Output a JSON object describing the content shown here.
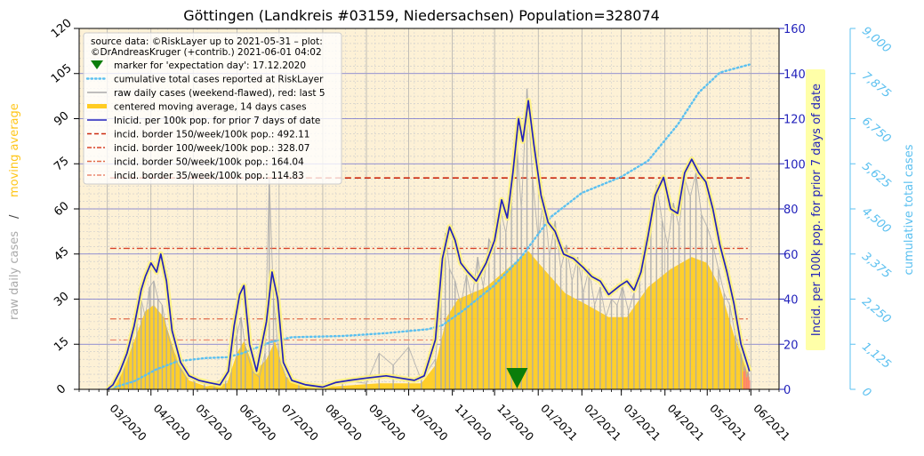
{
  "chart_data": {
    "type": "line",
    "title": "Göttingen (Landkreis #03159, Niedersachsen) Population=328074",
    "y_left_label_part1": "raw daily cases",
    "y_left_label_sep": "/",
    "y_left_label_part2": "moving average",
    "y_right_label": "Incid. per 100k pop. for prior 7 days of date",
    "y_right2_label": "cumulative total cases",
    "y_left_range": [
      0,
      120
    ],
    "y_right_range": [
      0,
      160
    ],
    "y_right2_range": [
      0,
      9000
    ],
    "y_left_ticks": [
      "0",
      "15",
      "30",
      "45",
      "60",
      "75",
      "90",
      "105",
      "120"
    ],
    "y_right_ticks": [
      "0",
      "20",
      "40",
      "60",
      "80",
      "100",
      "120",
      "140",
      "160"
    ],
    "y_right2_ticks": [
      "0",
      "1,125",
      "2,250",
      "3,375",
      "4,500",
      "5,625",
      "6,750",
      "7,875",
      "9,000"
    ],
    "x_ticks": [
      "03/2020",
      "04/2020",
      "05/2020",
      "06/2020",
      "07/2020",
      "08/2020",
      "09/2020",
      "10/2020",
      "11/2020",
      "12/2020",
      "01/2021",
      "02/2021",
      "03/2021",
      "04/2021",
      "05/2021",
      "06/2021"
    ],
    "x_range": [
      "2020-02-10",
      "2021-06-21"
    ],
    "grid": true,
    "legend_position": "top-left",
    "legend": {
      "source_line1": "source data: ©RiskLayer up to 2021-05-31 – plot:",
      "source_line2": "©DrAndreasKruger (+contrib.) 2021-06-01 04:02",
      "entries": [
        {
          "label": "marker for 'expectation day': 17.12.2020",
          "style": "marker",
          "color": "#0a7d0a"
        },
        {
          "label": "cumulative total cases reported at RiskLayer",
          "style": "dotted",
          "color": "#5bc0f0"
        },
        {
          "label": "raw daily cases (weekend-flawed), red: last 5",
          "style": "line",
          "color": "#aaaaaa"
        },
        {
          "label": "centered moving average, 14 days cases",
          "style": "thick",
          "color": "#ffcc22"
        },
        {
          "label": "Inicid. per 100k pop. for prior 7 days of date",
          "style": "line",
          "color": "#2222bb"
        },
        {
          "label": "incid. border 150/week/100k pop.: 492.11",
          "style": "dashed",
          "color": "#cc2a10"
        },
        {
          "label": "incid. border 100/week/100k pop.: 328.07",
          "style": "dashdot",
          "color": "#d9442a"
        },
        {
          "label": "incid. border   50/week/100k pop.: 164.04",
          "style": "dashdot",
          "color": "#e06a4a"
        },
        {
          "label": "incid. border   35/week/100k pop.: 114.83",
          "style": "dashdot",
          "color": "#ea8a72"
        }
      ]
    },
    "incidence_borders_cases": [
      492.11,
      328.07,
      164.04,
      114.83
    ],
    "expectation_day": "2020-12-17",
    "colors": {
      "background": "#fdf1d6",
      "raw": "#aaaaaa",
      "raw_last5": "#ff7777",
      "moving_average": "#ffcc22",
      "incidence": "#2222bb",
      "cumulative": "#5bc0f0",
      "marker": "#0a7d0a",
      "left_axis_raw": "#aaaaaa",
      "left_axis_avg": "#ffcc22",
      "right_axis": "#2222bb",
      "right2_axis": "#5bc0f0"
    },
    "series": [
      {
        "name": "Inicid. per 100k pop. for prior 7 days of date",
        "axis": "right",
        "points": [
          [
            "2020-03-01",
            0
          ],
          [
            "2020-03-05",
            2
          ],
          [
            "2020-03-10",
            8
          ],
          [
            "2020-03-15",
            16
          ],
          [
            "2020-03-20",
            28
          ],
          [
            "2020-03-25",
            44
          ],
          [
            "2020-03-28",
            50
          ],
          [
            "2020-04-01",
            56
          ],
          [
            "2020-04-05",
            52
          ],
          [
            "2020-04-08",
            60
          ],
          [
            "2020-04-12",
            48
          ],
          [
            "2020-04-16",
            26
          ],
          [
            "2020-04-22",
            12
          ],
          [
            "2020-04-28",
            6
          ],
          [
            "2020-05-05",
            4
          ],
          [
            "2020-05-12",
            3
          ],
          [
            "2020-05-20",
            2
          ],
          [
            "2020-05-26",
            8
          ],
          [
            "2020-05-30",
            28
          ],
          [
            "2020-06-03",
            42
          ],
          [
            "2020-06-06",
            46
          ],
          [
            "2020-06-10",
            20
          ],
          [
            "2020-06-15",
            8
          ],
          [
            "2020-06-22",
            30
          ],
          [
            "2020-06-26",
            52
          ],
          [
            "2020-06-30",
            40
          ],
          [
            "2020-07-04",
            12
          ],
          [
            "2020-07-10",
            4
          ],
          [
            "2020-07-20",
            2
          ],
          [
            "2020-08-01",
            1
          ],
          [
            "2020-08-10",
            3
          ],
          [
            "2020-08-20",
            4
          ],
          [
            "2020-09-01",
            5
          ],
          [
            "2020-09-15",
            6
          ],
          [
            "2020-09-25",
            5
          ],
          [
            "2020-10-05",
            4
          ],
          [
            "2020-10-12",
            6
          ],
          [
            "2020-10-20",
            22
          ],
          [
            "2020-10-25",
            58
          ],
          [
            "2020-10-30",
            72
          ],
          [
            "2020-11-03",
            66
          ],
          [
            "2020-11-07",
            56
          ],
          [
            "2020-11-12",
            52
          ],
          [
            "2020-11-18",
            48
          ],
          [
            "2020-11-25",
            56
          ],
          [
            "2020-12-01",
            66
          ],
          [
            "2020-12-06",
            84
          ],
          [
            "2020-12-10",
            76
          ],
          [
            "2020-12-14",
            96
          ],
          [
            "2020-12-18",
            120
          ],
          [
            "2020-12-21",
            110
          ],
          [
            "2020-12-25",
            128
          ],
          [
            "2020-12-29",
            108
          ],
          [
            "2021-01-03",
            86
          ],
          [
            "2021-01-08",
            74
          ],
          [
            "2021-01-13",
            70
          ],
          [
            "2021-01-19",
            60
          ],
          [
            "2021-01-26",
            58
          ],
          [
            "2021-02-02",
            54
          ],
          [
            "2021-02-08",
            50
          ],
          [
            "2021-02-14",
            48
          ],
          [
            "2021-02-20",
            42
          ],
          [
            "2021-02-28",
            46
          ],
          [
            "2021-03-05",
            48
          ],
          [
            "2021-03-10",
            44
          ],
          [
            "2021-03-15",
            52
          ],
          [
            "2021-03-20",
            68
          ],
          [
            "2021-03-25",
            86
          ],
          [
            "2021-03-31",
            94
          ],
          [
            "2021-04-05",
            80
          ],
          [
            "2021-04-10",
            78
          ],
          [
            "2021-04-15",
            96
          ],
          [
            "2021-04-20",
            102
          ],
          [
            "2021-04-25",
            96
          ],
          [
            "2021-04-30",
            92
          ],
          [
            "2021-05-05",
            80
          ],
          [
            "2021-05-10",
            64
          ],
          [
            "2021-05-15",
            52
          ],
          [
            "2021-05-20",
            38
          ],
          [
            "2021-05-25",
            20
          ],
          [
            "2021-05-30",
            10
          ],
          [
            "2021-05-31",
            8
          ]
        ]
      },
      {
        "name": "centered moving average, 14 days cases",
        "axis": "left",
        "points": [
          [
            "2020-03-01",
            0
          ],
          [
            "2020-03-10",
            4
          ],
          [
            "2020-03-20",
            16
          ],
          [
            "2020-03-28",
            26
          ],
          [
            "2020-04-03",
            28
          ],
          [
            "2020-04-10",
            24
          ],
          [
            "2020-04-18",
            12
          ],
          [
            "2020-04-28",
            3
          ],
          [
            "2020-05-10",
            1
          ],
          [
            "2020-05-25",
            2
          ],
          [
            "2020-06-01",
            12
          ],
          [
            "2020-06-06",
            16
          ],
          [
            "2020-06-14",
            6
          ],
          [
            "2020-06-22",
            10
          ],
          [
            "2020-06-28",
            16
          ],
          [
            "2020-07-06",
            4
          ],
          [
            "2020-07-20",
            1
          ],
          [
            "2020-08-10",
            1
          ],
          [
            "2020-09-10",
            2
          ],
          [
            "2020-10-10",
            2
          ],
          [
            "2020-10-20",
            8
          ],
          [
            "2020-10-28",
            24
          ],
          [
            "2020-11-05",
            30
          ],
          [
            "2020-11-15",
            32
          ],
          [
            "2020-11-25",
            34
          ],
          [
            "2020-12-05",
            38
          ],
          [
            "2020-12-15",
            42
          ],
          [
            "2020-12-25",
            46
          ],
          [
            "2021-01-05",
            40
          ],
          [
            "2021-01-20",
            32
          ],
          [
            "2021-02-05",
            28
          ],
          [
            "2021-02-20",
            24
          ],
          [
            "2021-03-05",
            24
          ],
          [
            "2021-03-20",
            34
          ],
          [
            "2021-04-05",
            40
          ],
          [
            "2021-04-20",
            44
          ],
          [
            "2021-05-01",
            42
          ],
          [
            "2021-05-10",
            34
          ],
          [
            "2021-05-20",
            18
          ],
          [
            "2021-05-31",
            4
          ]
        ]
      },
      {
        "name": "cumulative total cases reported at RiskLayer",
        "axis": "right2",
        "points": [
          [
            "2020-03-01",
            0
          ],
          [
            "2020-03-20",
            200
          ],
          [
            "2020-04-05",
            500
          ],
          [
            "2020-04-20",
            700
          ],
          [
            "2020-05-10",
            780
          ],
          [
            "2020-05-25",
            800
          ],
          [
            "2020-06-05",
            900
          ],
          [
            "2020-06-25",
            1180
          ],
          [
            "2020-07-10",
            1300
          ],
          [
            "2020-08-15",
            1330
          ],
          [
            "2020-09-15",
            1400
          ],
          [
            "2020-10-15",
            1500
          ],
          [
            "2020-10-25",
            1600
          ],
          [
            "2020-11-10",
            2000
          ],
          [
            "2020-12-01",
            2600
          ],
          [
            "2020-12-20",
            3300
          ],
          [
            "2021-01-10",
            4300
          ],
          [
            "2021-02-01",
            4900
          ],
          [
            "2021-03-01",
            5300
          ],
          [
            "2021-03-20",
            5700
          ],
          [
            "2021-04-10",
            6600
          ],
          [
            "2021-04-25",
            7400
          ],
          [
            "2021-05-10",
            7900
          ],
          [
            "2021-05-31",
            8100
          ]
        ]
      }
    ],
    "raw_daily_cases": [
      [
        "2020-03-02",
        1
      ],
      [
        "2020-03-06",
        3
      ],
      [
        "2020-03-10",
        6
      ],
      [
        "2020-03-13",
        9
      ],
      [
        "2020-03-16",
        14
      ],
      [
        "2020-03-19",
        20
      ],
      [
        "2020-03-22",
        26
      ],
      [
        "2020-03-25",
        30
      ],
      [
        "2020-03-28",
        24
      ],
      [
        "2020-03-31",
        34
      ],
      [
        "2020-04-03",
        36
      ],
      [
        "2020-04-06",
        30
      ],
      [
        "2020-04-09",
        28
      ],
      [
        "2020-04-12",
        20
      ],
      [
        "2020-04-15",
        15
      ],
      [
        "2020-04-18",
        10
      ],
      [
        "2020-04-22",
        7
      ],
      [
        "2020-04-26",
        4
      ],
      [
        "2020-05-02",
        3
      ],
      [
        "2020-05-09",
        2
      ],
      [
        "2020-05-16",
        2
      ],
      [
        "2020-05-24",
        4
      ],
      [
        "2020-05-28",
        12
      ],
      [
        "2020-06-01",
        18
      ],
      [
        "2020-06-04",
        24
      ],
      [
        "2020-06-07",
        14
      ],
      [
        "2020-06-12",
        6
      ],
      [
        "2020-06-17",
        4
      ],
      [
        "2020-06-21",
        12
      ],
      [
        "2020-06-24",
        70
      ],
      [
        "2020-06-27",
        30
      ],
      [
        "2020-07-01",
        10
      ],
      [
        "2020-07-06",
        4
      ],
      [
        "2020-07-15",
        2
      ],
      [
        "2020-08-01",
        1
      ],
      [
        "2020-08-15",
        3
      ],
      [
        "2020-09-01",
        2
      ],
      [
        "2020-09-10",
        12
      ],
      [
        "2020-09-20",
        8
      ],
      [
        "2020-10-01",
        14
      ],
      [
        "2020-10-10",
        3
      ],
      [
        "2020-10-20",
        10
      ],
      [
        "2020-10-24",
        30
      ],
      [
        "2020-10-27",
        52
      ],
      [
        "2020-10-30",
        40
      ],
      [
        "2020-11-03",
        36
      ],
      [
        "2020-11-07",
        28
      ],
      [
        "2020-11-11",
        38
      ],
      [
        "2020-11-15",
        30
      ],
      [
        "2020-11-19",
        44
      ],
      [
        "2020-11-23",
        34
      ],
      [
        "2020-11-27",
        50
      ],
      [
        "2020-12-01",
        46
      ],
      [
        "2020-12-05",
        60
      ],
      [
        "2020-12-09",
        52
      ],
      [
        "2020-12-13",
        66
      ],
      [
        "2020-12-17",
        80
      ],
      [
        "2020-12-20",
        60
      ],
      [
        "2020-12-24",
        100
      ],
      [
        "2020-12-28",
        70
      ],
      [
        "2021-01-01",
        50
      ],
      [
        "2021-01-05",
        64
      ],
      [
        "2021-01-09",
        44
      ],
      [
        "2021-01-13",
        56
      ],
      [
        "2021-01-17",
        40
      ],
      [
        "2021-01-21",
        48
      ],
      [
        "2021-01-25",
        36
      ],
      [
        "2021-01-29",
        44
      ],
      [
        "2021-02-02",
        32
      ],
      [
        "2021-02-06",
        40
      ],
      [
        "2021-02-10",
        28
      ],
      [
        "2021-02-14",
        34
      ],
      [
        "2021-02-18",
        24
      ],
      [
        "2021-02-22",
        30
      ],
      [
        "2021-02-26",
        28
      ],
      [
        "2021-03-02",
        34
      ],
      [
        "2021-03-06",
        26
      ],
      [
        "2021-03-10",
        32
      ],
      [
        "2021-03-14",
        38
      ],
      [
        "2021-03-18",
        50
      ],
      [
        "2021-03-22",
        58
      ],
      [
        "2021-03-26",
        68
      ],
      [
        "2021-03-30",
        56
      ],
      [
        "2021-04-03",
        48
      ],
      [
        "2021-04-07",
        62
      ],
      [
        "2021-04-11",
        54
      ],
      [
        "2021-04-15",
        70
      ],
      [
        "2021-04-19",
        64
      ],
      [
        "2021-04-23",
        72
      ],
      [
        "2021-04-27",
        58
      ],
      [
        "2021-05-01",
        54
      ],
      [
        "2021-05-05",
        48
      ],
      [
        "2021-05-09",
        40
      ],
      [
        "2021-05-13",
        32
      ],
      [
        "2021-05-17",
        28
      ],
      [
        "2021-05-21",
        18
      ],
      [
        "2021-05-25",
        12
      ],
      [
        "2021-05-27",
        6
      ],
      [
        "2021-05-28",
        8
      ],
      [
        "2021-05-29",
        4
      ],
      [
        "2021-05-30",
        6
      ],
      [
        "2021-05-31",
        3
      ]
    ]
  }
}
